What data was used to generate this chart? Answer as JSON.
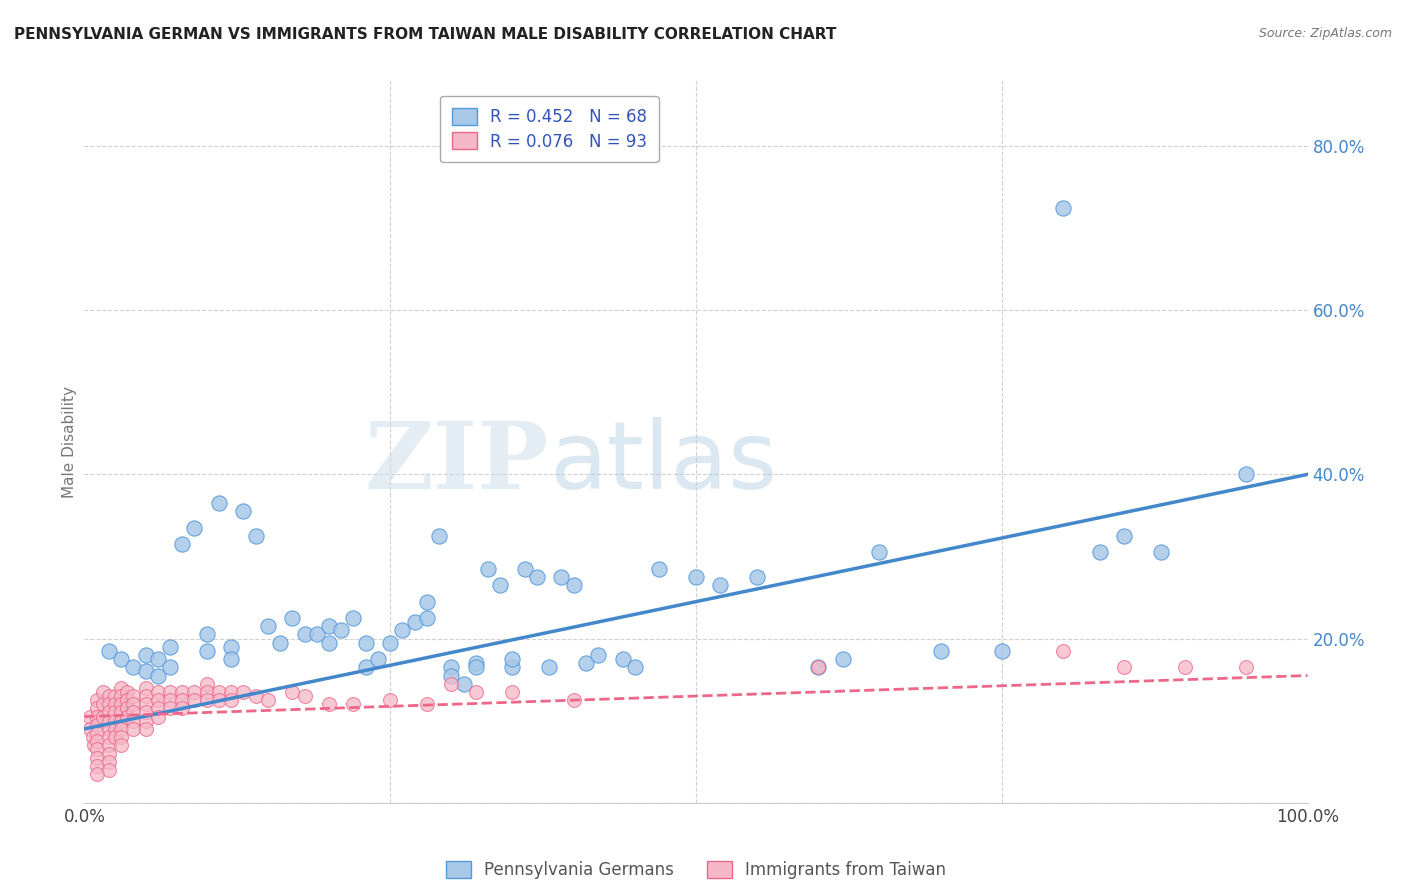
{
  "title": "PENNSYLVANIA GERMAN VS IMMIGRANTS FROM TAIWAN MALE DISABILITY CORRELATION CHART",
  "source": "Source: ZipAtlas.com",
  "ylabel": "Male Disability",
  "xlim": [
    0.0,
    1.0
  ],
  "ylim": [
    0.0,
    0.88
  ],
  "yticks": [
    0.0,
    0.2,
    0.4,
    0.6,
    0.8
  ],
  "ytick_labels": [
    "",
    "20.0%",
    "40.0%",
    "60.0%",
    "80.0%"
  ],
  "xtick_positions": [
    0.0,
    1.0
  ],
  "xtick_labels": [
    "0.0%",
    "100.0%"
  ],
  "blue_R": 0.452,
  "blue_N": 68,
  "pink_R": 0.076,
  "pink_N": 93,
  "blue_fill": "#a8c8e8",
  "pink_fill": "#f5b8c8",
  "blue_edge": "#5599dd",
  "pink_edge": "#ee6688",
  "blue_line": "#4488cc",
  "pink_line": "#ee6688",
  "legend_text_color": "#3355bb",
  "watermark": "ZIPatlas",
  "blue_label": "Pennsylvania Germans",
  "pink_label": "Immigrants from Taiwan",
  "blue_x": [
    0.02,
    0.03,
    0.04,
    0.05,
    0.05,
    0.06,
    0.06,
    0.07,
    0.07,
    0.08,
    0.09,
    0.1,
    0.1,
    0.11,
    0.12,
    0.12,
    0.13,
    0.14,
    0.15,
    0.16,
    0.17,
    0.18,
    0.19,
    0.2,
    0.2,
    0.21,
    0.22,
    0.23,
    0.23,
    0.24,
    0.25,
    0.26,
    0.27,
    0.28,
    0.28,
    0.29,
    0.3,
    0.3,
    0.31,
    0.32,
    0.32,
    0.33,
    0.34,
    0.35,
    0.35,
    0.36,
    0.37,
    0.38,
    0.39,
    0.4,
    0.41,
    0.42,
    0.44,
    0.45,
    0.47,
    0.5,
    0.52,
    0.55,
    0.6,
    0.62,
    0.65,
    0.7,
    0.75,
    0.8,
    0.83,
    0.85,
    0.88,
    0.95
  ],
  "blue_y": [
    0.185,
    0.175,
    0.165,
    0.18,
    0.16,
    0.175,
    0.155,
    0.19,
    0.165,
    0.315,
    0.335,
    0.205,
    0.185,
    0.365,
    0.19,
    0.175,
    0.355,
    0.325,
    0.215,
    0.195,
    0.225,
    0.205,
    0.205,
    0.195,
    0.215,
    0.21,
    0.225,
    0.195,
    0.165,
    0.175,
    0.195,
    0.21,
    0.22,
    0.225,
    0.245,
    0.325,
    0.165,
    0.155,
    0.145,
    0.17,
    0.165,
    0.285,
    0.265,
    0.165,
    0.175,
    0.285,
    0.275,
    0.165,
    0.275,
    0.265,
    0.17,
    0.18,
    0.175,
    0.165,
    0.285,
    0.275,
    0.265,
    0.275,
    0.165,
    0.175,
    0.305,
    0.185,
    0.185,
    0.725,
    0.305,
    0.325,
    0.305,
    0.4
  ],
  "pink_x": [
    0.005,
    0.005,
    0.007,
    0.008,
    0.01,
    0.01,
    0.01,
    0.01,
    0.01,
    0.01,
    0.01,
    0.01,
    0.01,
    0.01,
    0.015,
    0.015,
    0.015,
    0.02,
    0.02,
    0.02,
    0.02,
    0.02,
    0.02,
    0.02,
    0.02,
    0.02,
    0.02,
    0.025,
    0.025,
    0.025,
    0.025,
    0.025,
    0.025,
    0.03,
    0.03,
    0.03,
    0.03,
    0.03,
    0.03,
    0.03,
    0.03,
    0.035,
    0.035,
    0.035,
    0.035,
    0.04,
    0.04,
    0.04,
    0.04,
    0.04,
    0.05,
    0.05,
    0.05,
    0.05,
    0.05,
    0.05,
    0.06,
    0.06,
    0.06,
    0.06,
    0.07,
    0.07,
    0.07,
    0.08,
    0.08,
    0.08,
    0.09,
    0.09,
    0.1,
    0.1,
    0.1,
    0.11,
    0.11,
    0.12,
    0.12,
    0.13,
    0.14,
    0.15,
    0.17,
    0.18,
    0.2,
    0.22,
    0.25,
    0.28,
    0.3,
    0.32,
    0.35,
    0.4,
    0.6,
    0.8,
    0.85,
    0.9,
    0.95
  ],
  "pink_y": [
    0.105,
    0.09,
    0.08,
    0.07,
    0.125,
    0.115,
    0.105,
    0.095,
    0.085,
    0.075,
    0.065,
    0.055,
    0.045,
    0.035,
    0.135,
    0.12,
    0.105,
    0.13,
    0.12,
    0.11,
    0.1,
    0.09,
    0.08,
    0.07,
    0.06,
    0.05,
    0.04,
    0.13,
    0.12,
    0.11,
    0.1,
    0.09,
    0.08,
    0.14,
    0.13,
    0.12,
    0.11,
    0.1,
    0.09,
    0.08,
    0.07,
    0.135,
    0.125,
    0.115,
    0.105,
    0.13,
    0.12,
    0.11,
    0.1,
    0.09,
    0.14,
    0.13,
    0.12,
    0.11,
    0.1,
    0.09,
    0.135,
    0.125,
    0.115,
    0.105,
    0.135,
    0.125,
    0.115,
    0.135,
    0.125,
    0.115,
    0.135,
    0.125,
    0.145,
    0.135,
    0.125,
    0.135,
    0.125,
    0.135,
    0.125,
    0.135,
    0.13,
    0.125,
    0.135,
    0.13,
    0.12,
    0.12,
    0.125,
    0.12,
    0.145,
    0.135,
    0.135,
    0.125,
    0.165,
    0.185,
    0.165,
    0.165,
    0.165
  ],
  "blue_trendline_x0": 0.0,
  "blue_trendline_y0": 0.09,
  "blue_trendline_x1": 1.0,
  "blue_trendline_y1": 0.4,
  "pink_trendline_x0": 0.0,
  "pink_trendline_y0": 0.105,
  "pink_trendline_x1": 1.0,
  "pink_trendline_y1": 0.155,
  "background_color": "#ffffff",
  "grid_color": "#cccccc",
  "title_color": "#222222",
  "title_fontsize": 11,
  "axis_label_color": "#777777"
}
